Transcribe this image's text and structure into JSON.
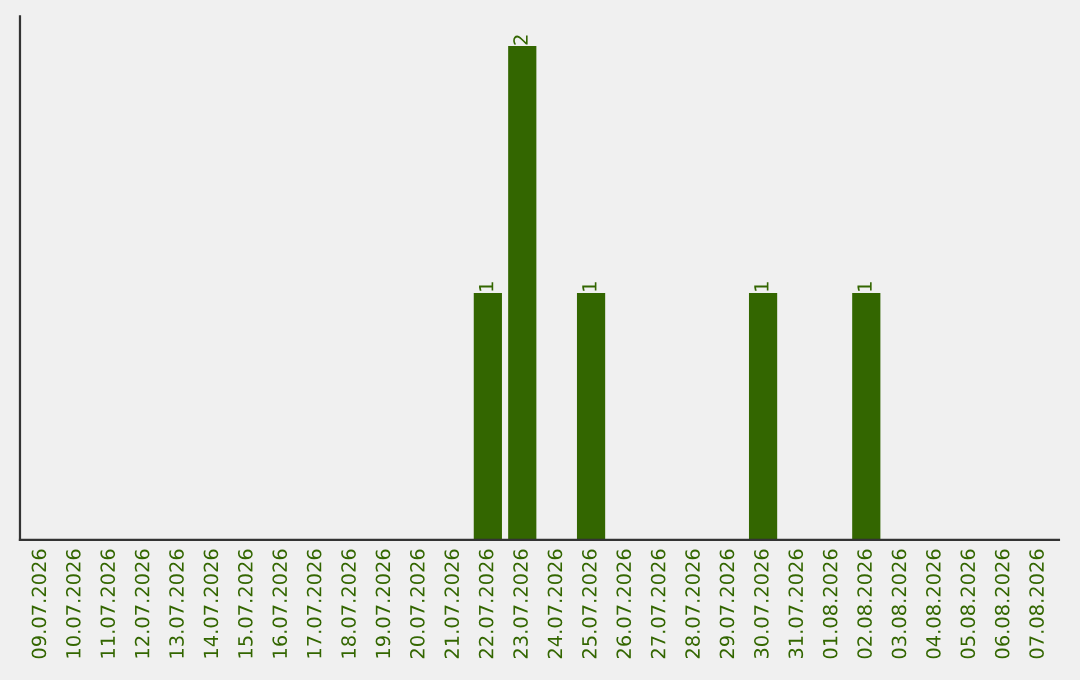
{
  "chart_data": {
    "type": "bar",
    "categories": [
      "09.07.2026",
      "10.07.2026",
      "11.07.2026",
      "12.07.2026",
      "13.07.2026",
      "14.07.2026",
      "15.07.2026",
      "16.07.2026",
      "17.07.2026",
      "18.07.2026",
      "19.07.2026",
      "20.07.2026",
      "21.07.2026",
      "22.07.2026",
      "23.07.2026",
      "24.07.2026",
      "25.07.2026",
      "26.07.2026",
      "27.07.2026",
      "28.07.2026",
      "29.07.2026",
      "30.07.2026",
      "31.07.2026",
      "01.08.2026",
      "02.08.2026",
      "03.08.2026",
      "04.08.2026",
      "05.08.2026",
      "06.08.2026",
      "07.08.2026"
    ],
    "values": [
      null,
      null,
      null,
      null,
      null,
      null,
      null,
      null,
      null,
      null,
      null,
      null,
      null,
      1,
      2,
      null,
      1,
      null,
      null,
      null,
      null,
      1,
      null,
      null,
      1,
      null,
      null,
      null,
      null,
      null
    ],
    "value_labels": [
      null,
      null,
      null,
      null,
      null,
      null,
      null,
      null,
      null,
      null,
      null,
      null,
      null,
      "1",
      "2",
      null,
      "1",
      null,
      null,
      null,
      null,
      "1",
      null,
      null,
      "1",
      null,
      null,
      null,
      null,
      null
    ],
    "color": "#336600",
    "tick_labels": "x",
    "grid": false,
    "legend": false
  }
}
